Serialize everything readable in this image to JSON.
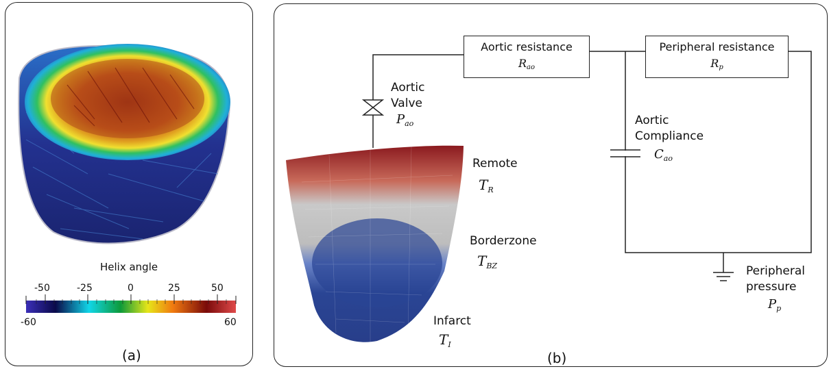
{
  "panel_a": {
    "caption": "(a)",
    "colorbar": {
      "title": "Helix angle",
      "ticks": [
        "-50",
        "-25",
        "0",
        "25",
        "50"
      ],
      "min_label": "-60",
      "max_label": "60",
      "colors": [
        "#3b2fb8",
        "#0a0a4a",
        "#11d6e8",
        "#0d9a3a",
        "#e6e61a",
        "#f07a10",
        "#7a0a0a",
        "#e04a4a"
      ]
    }
  },
  "panel_b": {
    "caption": "(b)",
    "aortic_resistance": {
      "label": "Aortic resistance",
      "sym": "R",
      "sub": "ao"
    },
    "peripheral_resistance": {
      "label": "Peripheral resistance",
      "sym": "R",
      "sub": "p"
    },
    "aortic_valve": {
      "line1": "Aortic",
      "line2": "Valve",
      "sym": "P",
      "sub": "ao"
    },
    "aortic_compliance": {
      "line1": "Aortic",
      "line2": "Compliance",
      "sym": "C",
      "sub": "ao"
    },
    "peripheral_pressure": {
      "line1": "Peripheral",
      "line2": "pressure",
      "sym": "P",
      "sub": "p"
    },
    "remote": {
      "label": "Remote",
      "sym": "T",
      "sub": "R"
    },
    "borderzone": {
      "label": "Borderzone",
      "sym": "T",
      "sub": "BZ"
    },
    "infarct": {
      "label": "Infarct",
      "sym": "T",
      "sub": "I"
    },
    "region_colors": {
      "remote": "#8b1a1f",
      "borderzone": "#c9c9c9",
      "infarct": "#2a4594"
    }
  }
}
